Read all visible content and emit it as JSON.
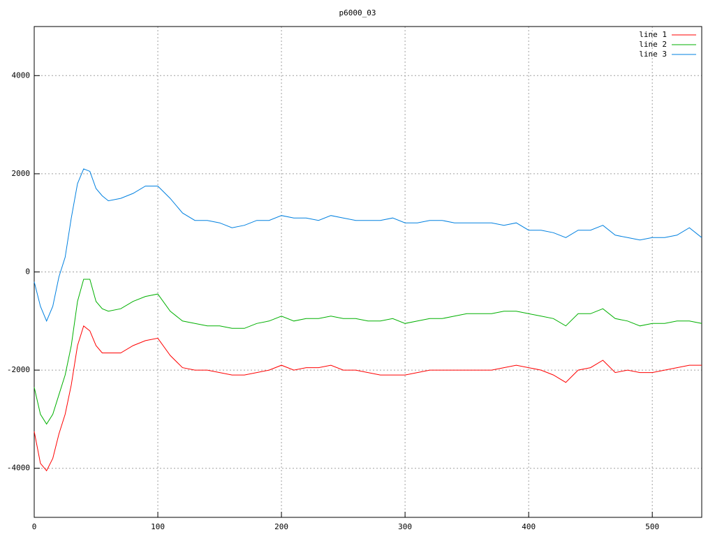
{
  "chart_data": {
    "type": "line",
    "title": "p6000_03",
    "x": [
      0,
      5,
      10,
      15,
      20,
      25,
      30,
      35,
      40,
      45,
      50,
      55,
      60,
      70,
      80,
      90,
      100,
      110,
      120,
      130,
      140,
      150,
      160,
      170,
      180,
      190,
      200,
      210,
      220,
      230,
      240,
      250,
      260,
      270,
      280,
      290,
      300,
      310,
      320,
      330,
      340,
      350,
      360,
      370,
      380,
      390,
      400,
      410,
      420,
      430,
      440,
      450,
      460,
      470,
      480,
      490,
      500,
      510,
      520,
      530,
      540
    ],
    "series": [
      {
        "name": "line 1",
        "color": "#ff0000",
        "values": [
          -3250,
          -3900,
          -4050,
          -3800,
          -3300,
          -2900,
          -2300,
          -1500,
          -1100,
          -1200,
          -1500,
          -1650,
          -1650,
          -1650,
          -1500,
          -1400,
          -1350,
          -1700,
          -1950,
          -2000,
          -2000,
          -2050,
          -2100,
          -2100,
          -2050,
          -2000,
          -1900,
          -2000,
          -1950,
          -1950,
          -1900,
          -2000,
          -2000,
          -2050,
          -2100,
          -2100,
          -2100,
          -2050,
          -2000,
          -2000,
          -2000,
          -2000,
          -2000,
          -2000,
          -1950,
          -1900,
          -1950,
          -2000,
          -2100,
          -2250,
          -2000,
          -1950,
          -1800,
          -2050,
          -2000,
          -2050,
          -2050,
          -2000,
          -1950,
          -1900,
          -1900
        ]
      },
      {
        "name": "line 2",
        "color": "#00b000",
        "values": [
          -2350,
          -2900,
          -3100,
          -2900,
          -2500,
          -2100,
          -1500,
          -600,
          -150,
          -150,
          -600,
          -750,
          -800,
          -750,
          -600,
          -500,
          -450,
          -800,
          -1000,
          -1050,
          -1100,
          -1100,
          -1150,
          -1150,
          -1050,
          -1000,
          -900,
          -1000,
          -950,
          -950,
          -900,
          -950,
          -950,
          -1000,
          -1000,
          -950,
          -1050,
          -1000,
          -950,
          -950,
          -900,
          -850,
          -850,
          -850,
          -800,
          -800,
          -850,
          -900,
          -950,
          -1100,
          -850,
          -850,
          -750,
          -950,
          -1000,
          -1100,
          -1050,
          -1050,
          -1000,
          -1000,
          -1050
        ]
      },
      {
        "name": "line 3",
        "color": "#0080e0",
        "values": [
          -200,
          -700,
          -1000,
          -700,
          -100,
          300,
          1100,
          1800,
          2100,
          2050,
          1700,
          1550,
          1450,
          1500,
          1600,
          1750,
          1750,
          1500,
          1200,
          1050,
          1050,
          1000,
          900,
          950,
          1050,
          1050,
          1150,
          1100,
          1100,
          1050,
          1150,
          1100,
          1050,
          1050,
          1050,
          1100,
          1000,
          1000,
          1050,
          1050,
          1000,
          1000,
          1000,
          1000,
          950,
          1000,
          850,
          850,
          800,
          700,
          850,
          850,
          950,
          750,
          700,
          650,
          700,
          700,
          750,
          900,
          700
        ]
      }
    ],
    "xlim": [
      0,
      540
    ],
    "ylim": [
      -5000,
      5000
    ],
    "xticks": [
      0,
      100,
      200,
      300,
      400,
      500
    ],
    "yticks": [
      -4000,
      -2000,
      0,
      2000,
      4000
    ],
    "grid": true,
    "legend": "top-right"
  }
}
